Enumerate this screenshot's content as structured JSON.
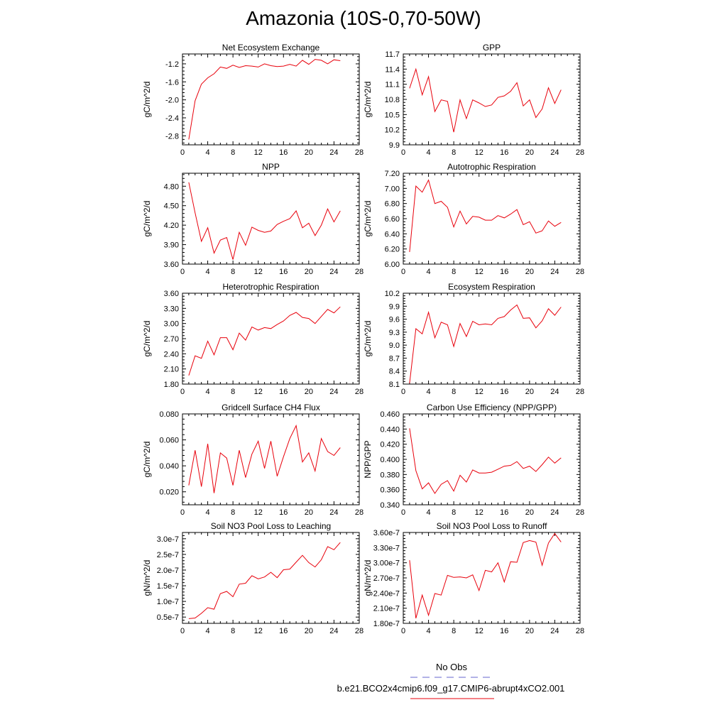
{
  "title": "Amazonia (10S-0,70-50W)",
  "legend": {
    "obs_label": "No Obs",
    "obs_color": "#6666cc",
    "run_label": "b.e21.BCO2x4cmip6.f09_g17.CMIP6-abrupt4xCO2.001",
    "run_color": "#e8000b"
  },
  "chart_data": [
    {
      "type": "line",
      "title": "Net Ecosystem Exchange",
      "ylabel": "gC/m^2/d",
      "xlim": [
        0,
        28
      ],
      "xticks": [
        0,
        4,
        8,
        12,
        16,
        20,
        24,
        28
      ],
      "ylim": [
        -3.0,
        -0.98
      ],
      "yticks": [
        -2.8,
        -2.4,
        -2.0,
        -1.6,
        -1.2
      ],
      "ytick_labels": [
        "-2.8",
        "-2.4",
        "-2.0",
        "-1.6",
        "-1.2"
      ],
      "x": [
        1,
        2,
        3,
        4,
        5,
        6,
        7,
        8,
        9,
        10,
        11,
        12,
        13,
        14,
        15,
        16,
        17,
        18,
        19,
        20,
        21,
        22,
        23,
        24,
        25
      ],
      "y": [
        -2.88,
        -2.02,
        -1.65,
        -1.51,
        -1.42,
        -1.27,
        -1.3,
        -1.23,
        -1.28,
        -1.24,
        -1.25,
        -1.27,
        -1.2,
        -1.24,
        -1.26,
        -1.25,
        -1.21,
        -1.25,
        -1.12,
        -1.21,
        -1.1,
        -1.12,
        -1.2,
        -1.11,
        -1.13
      ]
    },
    {
      "type": "line",
      "title": "GPP",
      "ylabel": "gC/m^2/d",
      "xlim": [
        0,
        28
      ],
      "xticks": [
        0,
        4,
        8,
        12,
        16,
        20,
        24,
        28
      ],
      "ylim": [
        9.9,
        11.7
      ],
      "yticks": [
        9.9,
        10.2,
        10.5,
        10.8,
        11.1,
        11.4,
        11.7
      ],
      "ytick_labels": [
        "9.9",
        "10.2",
        "10.5",
        "10.8",
        "11.1",
        "11.4",
        "11.7"
      ],
      "x": [
        1,
        2,
        3,
        4,
        5,
        6,
        7,
        8,
        9,
        10,
        11,
        12,
        13,
        14,
        15,
        16,
        17,
        18,
        19,
        20,
        21,
        22,
        23,
        24,
        25
      ],
      "y": [
        11.02,
        11.4,
        10.89,
        11.25,
        10.56,
        10.79,
        10.76,
        10.15,
        10.79,
        10.42,
        10.79,
        10.73,
        10.66,
        10.69,
        10.84,
        10.87,
        10.96,
        11.13,
        10.67,
        10.79,
        10.44,
        10.61,
        11.03,
        10.72,
        10.99
      ]
    },
    {
      "type": "line",
      "title": "NPP",
      "ylabel": "gC/m^2/d",
      "xlim": [
        0,
        28
      ],
      "xticks": [
        0,
        4,
        8,
        12,
        16,
        20,
        24,
        28
      ],
      "ylim": [
        3.6,
        5.0
      ],
      "yticks": [
        3.6,
        3.9,
        4.2,
        4.5,
        4.8
      ],
      "ytick_labels": [
        "3.60",
        "3.90",
        "4.20",
        "4.50",
        "4.80"
      ],
      "x": [
        1,
        2,
        3,
        4,
        5,
        6,
        7,
        8,
        9,
        10,
        11,
        12,
        13,
        14,
        15,
        16,
        17,
        18,
        19,
        20,
        21,
        22,
        23,
        24,
        25
      ],
      "y": [
        4.86,
        4.39,
        3.95,
        4.16,
        3.77,
        3.97,
        4.01,
        3.67,
        4.09,
        3.89,
        4.17,
        4.12,
        4.09,
        4.11,
        4.21,
        4.26,
        4.3,
        4.42,
        4.16,
        4.23,
        4.04,
        4.2,
        4.45,
        4.25,
        4.42
      ]
    },
    {
      "type": "line",
      "title": "Autotrophic Respiration",
      "ylabel": "gC/m^2/d",
      "xlim": [
        0,
        28
      ],
      "xticks": [
        0,
        4,
        8,
        12,
        16,
        20,
        24,
        28
      ],
      "ylim": [
        6.0,
        7.2
      ],
      "yticks": [
        6.0,
        6.2,
        6.4,
        6.6,
        6.8,
        7.0,
        7.2
      ],
      "ytick_labels": [
        "6.00",
        "6.20",
        "6.40",
        "6.60",
        "6.80",
        "7.00",
        "7.20"
      ],
      "x": [
        1,
        2,
        3,
        4,
        5,
        6,
        7,
        8,
        9,
        10,
        11,
        12,
        13,
        14,
        15,
        16,
        17,
        18,
        19,
        20,
        21,
        22,
        23,
        24,
        25
      ],
      "y": [
        6.16,
        7.03,
        6.95,
        7.11,
        6.8,
        6.83,
        6.75,
        6.49,
        6.7,
        6.53,
        6.63,
        6.62,
        6.58,
        6.58,
        6.64,
        6.61,
        6.66,
        6.72,
        6.52,
        6.56,
        6.41,
        6.44,
        6.57,
        6.5,
        6.55
      ]
    },
    {
      "type": "line",
      "title": "Heterotrophic Respiration",
      "ylabel": "gC/m^2/d",
      "xlim": [
        0,
        28
      ],
      "xticks": [
        0,
        4,
        8,
        12,
        16,
        20,
        24,
        28
      ],
      "ylim": [
        1.8,
        3.6
      ],
      "yticks": [
        1.8,
        2.1,
        2.4,
        2.7,
        3.0,
        3.3,
        3.6
      ],
      "ytick_labels": [
        "1.80",
        "2.10",
        "2.40",
        "2.70",
        "3.00",
        "3.30",
        "3.60"
      ],
      "x": [
        1,
        2,
        3,
        4,
        5,
        6,
        7,
        8,
        9,
        10,
        11,
        12,
        13,
        14,
        15,
        16,
        17,
        18,
        19,
        20,
        21,
        22,
        23,
        24,
        25
      ],
      "y": [
        1.97,
        2.36,
        2.31,
        2.65,
        2.38,
        2.72,
        2.72,
        2.48,
        2.81,
        2.67,
        2.93,
        2.87,
        2.92,
        2.9,
        2.98,
        3.05,
        3.16,
        3.22,
        3.12,
        3.1,
        3.0,
        3.14,
        3.28,
        3.21,
        3.33
      ]
    },
    {
      "type": "line",
      "title": "Ecosystem Respiration",
      "ylabel": "gC/m^2/d",
      "xlim": [
        0,
        28
      ],
      "xticks": [
        0,
        4,
        8,
        12,
        16,
        20,
        24,
        28
      ],
      "ylim": [
        8.1,
        10.2
      ],
      "yticks": [
        8.1,
        8.4,
        8.7,
        9.0,
        9.3,
        9.6,
        9.9,
        10.2
      ],
      "ytick_labels": [
        "8.1",
        "8.4",
        "8.7",
        "9.0",
        "9.3",
        "9.6",
        "9.9",
        "10.2"
      ],
      "x": [
        1,
        2,
        3,
        4,
        5,
        6,
        7,
        8,
        9,
        10,
        11,
        12,
        13,
        14,
        15,
        16,
        17,
        18,
        19,
        20,
        21,
        22,
        23,
        24,
        25
      ],
      "y": [
        8.12,
        9.38,
        9.26,
        9.76,
        9.17,
        9.53,
        9.47,
        8.97,
        9.5,
        9.2,
        9.55,
        9.47,
        9.49,
        9.47,
        9.62,
        9.66,
        9.81,
        9.93,
        9.62,
        9.63,
        9.4,
        9.56,
        9.84,
        9.69,
        9.88
      ]
    },
    {
      "type": "line",
      "title": "Gridcell Surface CH4 Flux",
      "ylabel": "gC/m^2/d",
      "xlim": [
        0,
        28
      ],
      "xticks": [
        0,
        4,
        8,
        12,
        16,
        20,
        24,
        28
      ],
      "ylim": [
        0.01,
        0.08
      ],
      "yticks": [
        0.02,
        0.04,
        0.06,
        0.08
      ],
      "ytick_labels": [
        "0.020",
        "0.040",
        "0.060",
        "0.080"
      ],
      "x": [
        1,
        2,
        3,
        4,
        5,
        6,
        7,
        8,
        9,
        10,
        11,
        12,
        13,
        14,
        15,
        16,
        17,
        18,
        19,
        20,
        21,
        22,
        23,
        24,
        25
      ],
      "y": [
        0.025,
        0.052,
        0.024,
        0.057,
        0.019,
        0.05,
        0.046,
        0.025,
        0.052,
        0.031,
        0.049,
        0.059,
        0.038,
        0.059,
        0.032,
        0.047,
        0.061,
        0.071,
        0.043,
        0.05,
        0.036,
        0.061,
        0.051,
        0.048,
        0.054
      ]
    },
    {
      "type": "line",
      "title": "Carbon Use Efficiency (NPP/GPP)",
      "ylabel": "NPP/GPP",
      "xlim": [
        0,
        28
      ],
      "xticks": [
        0,
        4,
        8,
        12,
        16,
        20,
        24,
        28
      ],
      "ylim": [
        0.34,
        0.46
      ],
      "yticks": [
        0.34,
        0.36,
        0.38,
        0.4,
        0.42,
        0.44,
        0.46
      ],
      "ytick_labels": [
        "0.340",
        "0.360",
        "0.380",
        "0.400",
        "0.420",
        "0.440",
        "0.460"
      ],
      "x": [
        1,
        2,
        3,
        4,
        5,
        6,
        7,
        8,
        9,
        10,
        11,
        12,
        13,
        14,
        15,
        16,
        17,
        18,
        19,
        20,
        21,
        22,
        23,
        24,
        25
      ],
      "y": [
        0.441,
        0.385,
        0.361,
        0.369,
        0.355,
        0.367,
        0.372,
        0.358,
        0.379,
        0.37,
        0.386,
        0.382,
        0.382,
        0.383,
        0.387,
        0.391,
        0.392,
        0.397,
        0.388,
        0.391,
        0.384,
        0.393,
        0.403,
        0.395,
        0.402
      ]
    },
    {
      "type": "line",
      "title": "Soil NO3 Pool Loss to Leaching",
      "ylabel": "gN/m^2/d",
      "xlim": [
        0,
        28
      ],
      "xticks": [
        0,
        4,
        8,
        12,
        16,
        20,
        24,
        28
      ],
      "ylim": [
        3e-08,
        3.2e-07
      ],
      "yticks": [
        5e-08,
        1e-07,
        1.5e-07,
        2e-07,
        2.5e-07,
        3e-07
      ],
      "ytick_labels": [
        "0.5e-7",
        "1.0e-7",
        "1.5e-7",
        "2.0e-7",
        "2.5e-7",
        "3.0e-7"
      ],
      "x": [
        1,
        2,
        3,
        4,
        5,
        6,
        7,
        8,
        9,
        10,
        11,
        12,
        13,
        14,
        15,
        16,
        17,
        18,
        19,
        20,
        21,
        22,
        23,
        24,
        25
      ],
      "y": [
        4.5e-08,
        4.7e-08,
        6.2e-08,
        8e-08,
        7.5e-08,
        1.25e-07,
        1.32e-07,
        1.15e-07,
        1.55e-07,
        1.58e-07,
        1.82e-07,
        1.72e-07,
        1.78e-07,
        1.93e-07,
        1.76e-07,
        2.01e-07,
        2.03e-07,
        2.25e-07,
        2.47e-07,
        2.24e-07,
        2.1e-07,
        2.33e-07,
        2.75e-07,
        2.65e-07,
        2.88e-07
      ]
    },
    {
      "type": "line",
      "title": "Soil NO3 Pool Loss to Runoff",
      "ylabel": "gN/m^2/d",
      "xlim": [
        0,
        28
      ],
      "xticks": [
        0,
        4,
        8,
        12,
        16,
        20,
        24,
        28
      ],
      "ylim": [
        1.8e-07,
        3.6e-07
      ],
      "yticks": [
        1.8e-07,
        2.1e-07,
        2.4e-07,
        2.7e-07,
        3e-07,
        3.3e-07,
        3.6e-07
      ],
      "ytick_labels": [
        "1.80e-7",
        "2.10e-7",
        "2.40e-7",
        "2.70e-7",
        "3.00e-7",
        "3.30e-7",
        "3.60e-7"
      ],
      "x": [
        1,
        2,
        3,
        4,
        5,
        6,
        7,
        8,
        9,
        10,
        11,
        12,
        13,
        14,
        15,
        16,
        17,
        18,
        19,
        20,
        21,
        22,
        23,
        24,
        25
      ],
      "y": [
        3.05e-07,
        1.9e-07,
        2.36e-07,
        1.96e-07,
        2.39e-07,
        2.36e-07,
        2.75e-07,
        2.71e-07,
        2.72e-07,
        2.7e-07,
        2.76e-07,
        2.45e-07,
        2.85e-07,
        2.82e-07,
        3e-07,
        2.62e-07,
        3.02e-07,
        3.01e-07,
        3.4e-07,
        3.44e-07,
        3.41e-07,
        2.95e-07,
        3.39e-07,
        3.58e-07,
        3.41e-07
      ]
    }
  ]
}
